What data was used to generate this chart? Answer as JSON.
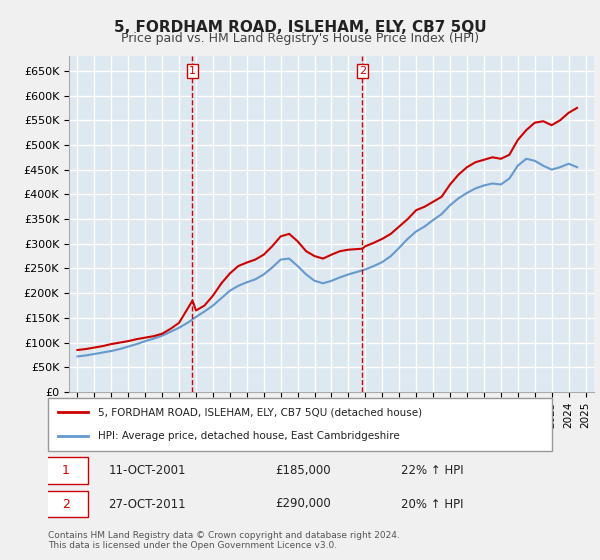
{
  "title": "5, FORDHAM ROAD, ISLEHAM, ELY, CB7 5QU",
  "subtitle": "Price paid vs. HM Land Registry's House Price Index (HPI)",
  "legend_line1": "5, FORDHAM ROAD, ISLEHAM, ELY, CB7 5QU (detached house)",
  "legend_line2": "HPI: Average price, detached house, East Cambridgeshire",
  "footnote": "Contains HM Land Registry data © Crown copyright and database right 2024.\nThis data is licensed under the Open Government Licence v3.0.",
  "annotation1": {
    "num": "1",
    "x": 2001.79,
    "label": "11-OCT-2001",
    "price": "£185,000",
    "pct": "22% ↑ HPI"
  },
  "annotation2": {
    "num": "2",
    "x": 2011.82,
    "label": "27-OCT-2011",
    "price": "£290,000",
    "pct": "20% ↑ HPI"
  },
  "ylim": [
    0,
    680000
  ],
  "xlim": [
    1994.5,
    2025.5
  ],
  "yticks": [
    0,
    50000,
    100000,
    150000,
    200000,
    250000,
    300000,
    350000,
    400000,
    450000,
    500000,
    550000,
    600000,
    650000
  ],
  "ytick_labels": [
    "£0",
    "£50K",
    "£100K",
    "£150K",
    "£200K",
    "£250K",
    "£300K",
    "£350K",
    "£400K",
    "£450K",
    "£500K",
    "£550K",
    "£600K",
    "£650K"
  ],
  "xticks": [
    1995,
    1996,
    1997,
    1998,
    1999,
    2000,
    2001,
    2002,
    2003,
    2004,
    2005,
    2006,
    2007,
    2008,
    2009,
    2010,
    2011,
    2012,
    2013,
    2014,
    2015,
    2016,
    2017,
    2018,
    2019,
    2020,
    2021,
    2022,
    2023,
    2024,
    2025
  ],
  "red_line_color": "#cc0000",
  "blue_line_color": "#6699cc",
  "vline_color": "#cc0000",
  "background_color": "#dde8f0",
  "plot_bg_color": "#dde8f0",
  "grid_color": "#ffffff",
  "red_x": [
    1995.0,
    1995.5,
    1996.0,
    1996.5,
    1997.0,
    1997.5,
    1998.0,
    1998.5,
    1999.0,
    1999.5,
    2000.0,
    2000.5,
    2001.0,
    2001.79,
    2002.0,
    2002.5,
    2003.0,
    2003.5,
    2004.0,
    2004.5,
    2005.0,
    2005.5,
    2006.0,
    2006.5,
    2007.0,
    2007.5,
    2008.0,
    2008.5,
    2009.0,
    2009.5,
    2010.0,
    2010.5,
    2011.0,
    2011.82,
    2012.0,
    2012.5,
    2013.0,
    2013.5,
    2014.0,
    2014.5,
    2015.0,
    2015.5,
    2016.0,
    2016.5,
    2017.0,
    2017.5,
    2018.0,
    2018.5,
    2019.0,
    2019.5,
    2020.0,
    2020.5,
    2021.0,
    2021.5,
    2022.0,
    2022.5,
    2023.0,
    2023.5,
    2024.0,
    2024.5
  ],
  "red_y": [
    85000,
    87000,
    90000,
    93000,
    97000,
    100000,
    103000,
    107000,
    110000,
    113000,
    118000,
    128000,
    140000,
    185000,
    165000,
    175000,
    195000,
    220000,
    240000,
    255000,
    262000,
    268000,
    278000,
    295000,
    315000,
    320000,
    305000,
    285000,
    275000,
    270000,
    278000,
    285000,
    288000,
    290000,
    295000,
    302000,
    310000,
    320000,
    335000,
    350000,
    368000,
    375000,
    385000,
    395000,
    420000,
    440000,
    455000,
    465000,
    470000,
    475000,
    472000,
    480000,
    510000,
    530000,
    545000,
    548000,
    540000,
    550000,
    565000,
    575000
  ],
  "blue_x": [
    1995.0,
    1995.5,
    1996.0,
    1996.5,
    1997.0,
    1997.5,
    1998.0,
    1998.5,
    1999.0,
    1999.5,
    2000.0,
    2000.5,
    2001.0,
    2001.5,
    2002.0,
    2002.5,
    2003.0,
    2003.5,
    2004.0,
    2004.5,
    2005.0,
    2005.5,
    2006.0,
    2006.5,
    2007.0,
    2007.5,
    2008.0,
    2008.5,
    2009.0,
    2009.5,
    2010.0,
    2010.5,
    2011.0,
    2011.5,
    2012.0,
    2012.5,
    2013.0,
    2013.5,
    2014.0,
    2014.5,
    2015.0,
    2015.5,
    2016.0,
    2016.5,
    2017.0,
    2017.5,
    2018.0,
    2018.5,
    2019.0,
    2019.5,
    2020.0,
    2020.5,
    2021.0,
    2021.5,
    2022.0,
    2022.5,
    2023.0,
    2023.5,
    2024.0,
    2024.5
  ],
  "blue_y": [
    72000,
    74000,
    77000,
    80000,
    83000,
    87000,
    92000,
    97000,
    103000,
    108000,
    114000,
    122000,
    130000,
    140000,
    152000,
    163000,
    175000,
    190000,
    205000,
    215000,
    222000,
    228000,
    238000,
    252000,
    268000,
    270000,
    255000,
    238000,
    225000,
    220000,
    225000,
    232000,
    238000,
    243000,
    248000,
    255000,
    263000,
    275000,
    292000,
    310000,
    325000,
    335000,
    348000,
    360000,
    378000,
    392000,
    403000,
    412000,
    418000,
    422000,
    420000,
    432000,
    458000,
    472000,
    468000,
    458000,
    450000,
    455000,
    462000,
    455000
  ]
}
